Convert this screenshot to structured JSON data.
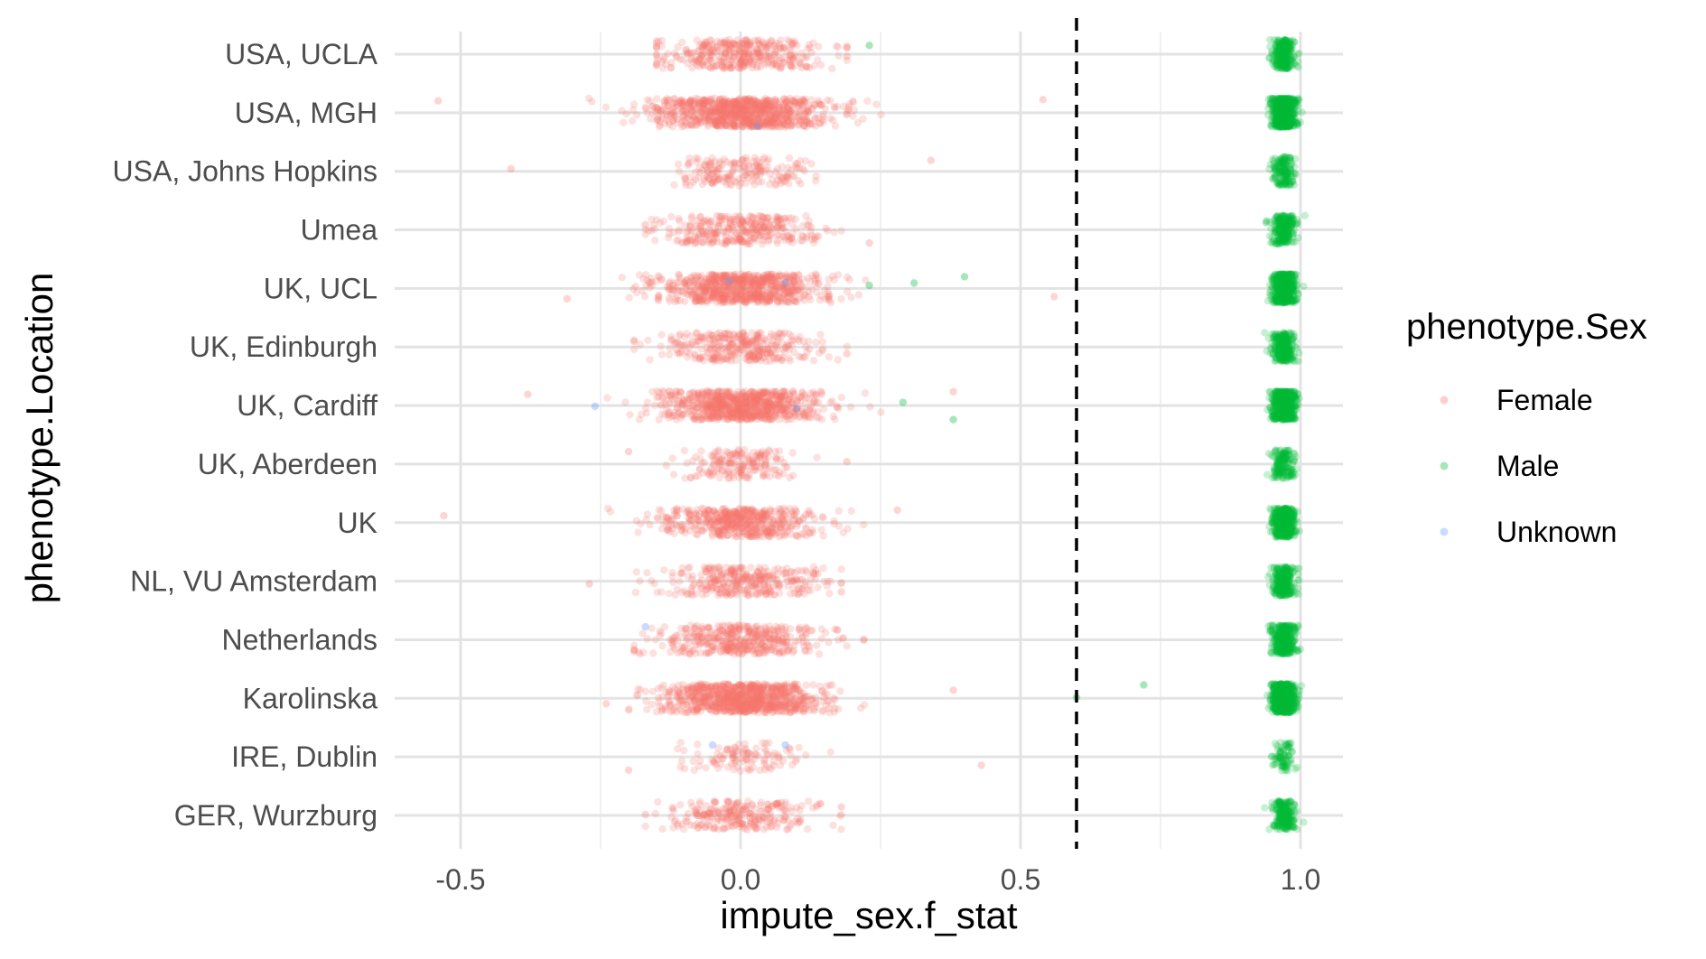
{
  "chart_data": {
    "type": "scatter",
    "xlabel": "impute_sex.f_stat",
    "ylabel": "phenotype.Location",
    "xlim": [
      -0.62,
      1.08
    ],
    "x_ticks": [
      -0.5,
      0.0,
      0.5,
      1.0
    ],
    "x_tick_labels": [
      "-0.5",
      "0.0",
      "0.5",
      "1.0"
    ],
    "categories": [
      "GER, Wurzburg",
      "IRE, Dublin",
      "Karolinska",
      "Netherlands",
      "NL, VU Amsterdam",
      "UK",
      "UK, Aberdeen",
      "UK, Cardiff",
      "UK, Edinburgh",
      "UK, UCL",
      "Umea",
      "USA, Johns Hopkins",
      "USA, MGH",
      "USA, UCLA"
    ],
    "reference_line": {
      "x": 0.6,
      "style": "dashed",
      "color": "#000000"
    },
    "grid": true,
    "legend": {
      "title": "phenotype.Sex",
      "position": "right",
      "entries": [
        {
          "name": "Female",
          "color": "#F8766D"
        },
        {
          "name": "Male",
          "color": "#00BA38"
        },
        {
          "name": "Unknown",
          "color": "#619CFF"
        }
      ]
    },
    "series": [
      {
        "name": "Female",
        "color": "#F8766D",
        "x_center": 0.0,
        "per_category": [
          {
            "category": "GER, Wurzburg",
            "mean": 0.0,
            "sd": 0.07,
            "n": 260,
            "min": -0.17,
            "max": 0.18
          },
          {
            "category": "IRE, Dublin",
            "mean": 0.0,
            "sd": 0.05,
            "n": 110,
            "min": -0.2,
            "max": 0.43
          },
          {
            "category": "Karolinska",
            "mean": 0.0,
            "sd": 0.07,
            "n": 900,
            "min": -0.24,
            "max": 0.38
          },
          {
            "category": "Netherlands",
            "mean": 0.0,
            "sd": 0.07,
            "n": 420,
            "min": -0.19,
            "max": 0.22
          },
          {
            "category": "NL, VU Amsterdam",
            "mean": 0.0,
            "sd": 0.07,
            "n": 330,
            "min": -0.27,
            "max": 0.18
          },
          {
            "category": "UK",
            "mean": 0.0,
            "sd": 0.07,
            "n": 520,
            "min": -0.53,
            "max": 0.28
          },
          {
            "category": "UK, Aberdeen",
            "mean": 0.0,
            "sd": 0.05,
            "n": 180,
            "min": -0.2,
            "max": 0.19
          },
          {
            "category": "UK, Cardiff",
            "mean": 0.0,
            "sd": 0.07,
            "n": 820,
            "min": -0.38,
            "max": 0.38
          },
          {
            "category": "UK, Edinburgh",
            "mean": 0.0,
            "sd": 0.07,
            "n": 330,
            "min": -0.19,
            "max": 0.19
          },
          {
            "category": "UK, UCL",
            "mean": 0.0,
            "sd": 0.07,
            "n": 760,
            "min": -0.31,
            "max": 0.56
          },
          {
            "category": "Umea",
            "mean": 0.0,
            "sd": 0.07,
            "n": 330,
            "min": -0.17,
            "max": 0.23
          },
          {
            "category": "USA, Johns Hopkins",
            "mean": 0.0,
            "sd": 0.06,
            "n": 190,
            "min": -0.41,
            "max": 0.34
          },
          {
            "category": "USA, MGH",
            "mean": 0.0,
            "sd": 0.08,
            "n": 920,
            "min": -0.54,
            "max": 0.54
          },
          {
            "category": "USA, UCLA",
            "mean": 0.0,
            "sd": 0.07,
            "n": 380,
            "min": -0.15,
            "max": 0.19
          }
        ]
      },
      {
        "name": "Male",
        "color": "#00BA38",
        "x_center": 0.97,
        "per_category": [
          {
            "category": "GER, Wurzburg",
            "mean": 0.97,
            "sd": 0.01,
            "n": 220
          },
          {
            "category": "IRE, Dublin",
            "mean": 0.97,
            "sd": 0.01,
            "n": 80
          },
          {
            "category": "Karolinska",
            "mean": 0.97,
            "sd": 0.01,
            "n": 700,
            "outliers": [
              0.72,
              0.6
            ]
          },
          {
            "category": "Netherlands",
            "mean": 0.97,
            "sd": 0.01,
            "n": 380
          },
          {
            "category": "NL, VU Amsterdam",
            "mean": 0.97,
            "sd": 0.01,
            "n": 260
          },
          {
            "category": "UK",
            "mean": 0.97,
            "sd": 0.01,
            "n": 460
          },
          {
            "category": "UK, Aberdeen",
            "mean": 0.97,
            "sd": 0.01,
            "n": 160
          },
          {
            "category": "UK, Cardiff",
            "mean": 0.97,
            "sd": 0.01,
            "n": 640,
            "outliers": [
              0.38,
              0.29
            ]
          },
          {
            "category": "UK, Edinburgh",
            "mean": 0.97,
            "sd": 0.01,
            "n": 300
          },
          {
            "category": "UK, UCL",
            "mean": 0.97,
            "sd": 0.01,
            "n": 620,
            "outliers": [
              0.4,
              0.31,
              0.23
            ]
          },
          {
            "category": "Umea",
            "mean": 0.97,
            "sd": 0.01,
            "n": 280
          },
          {
            "category": "USA, Johns Hopkins",
            "mean": 0.97,
            "sd": 0.01,
            "n": 160
          },
          {
            "category": "USA, MGH",
            "mean": 0.97,
            "sd": 0.01,
            "n": 760
          },
          {
            "category": "USA, UCLA",
            "mean": 0.97,
            "sd": 0.01,
            "n": 260,
            "outliers": [
              0.23
            ]
          }
        ]
      },
      {
        "name": "Unknown",
        "color": "#619CFF",
        "points": [
          {
            "category": "UK, UCL",
            "x": 0.08
          },
          {
            "category": "UK, UCL",
            "x": -0.02
          },
          {
            "category": "UK, Cardiff",
            "x": -0.26
          },
          {
            "category": "UK, Cardiff",
            "x": 0.1
          },
          {
            "category": "Netherlands",
            "x": -0.17
          },
          {
            "category": "IRE, Dublin",
            "x": -0.05
          },
          {
            "category": "IRE, Dublin",
            "x": 0.08
          },
          {
            "category": "USA, MGH",
            "x": 0.03
          }
        ]
      }
    ]
  }
}
